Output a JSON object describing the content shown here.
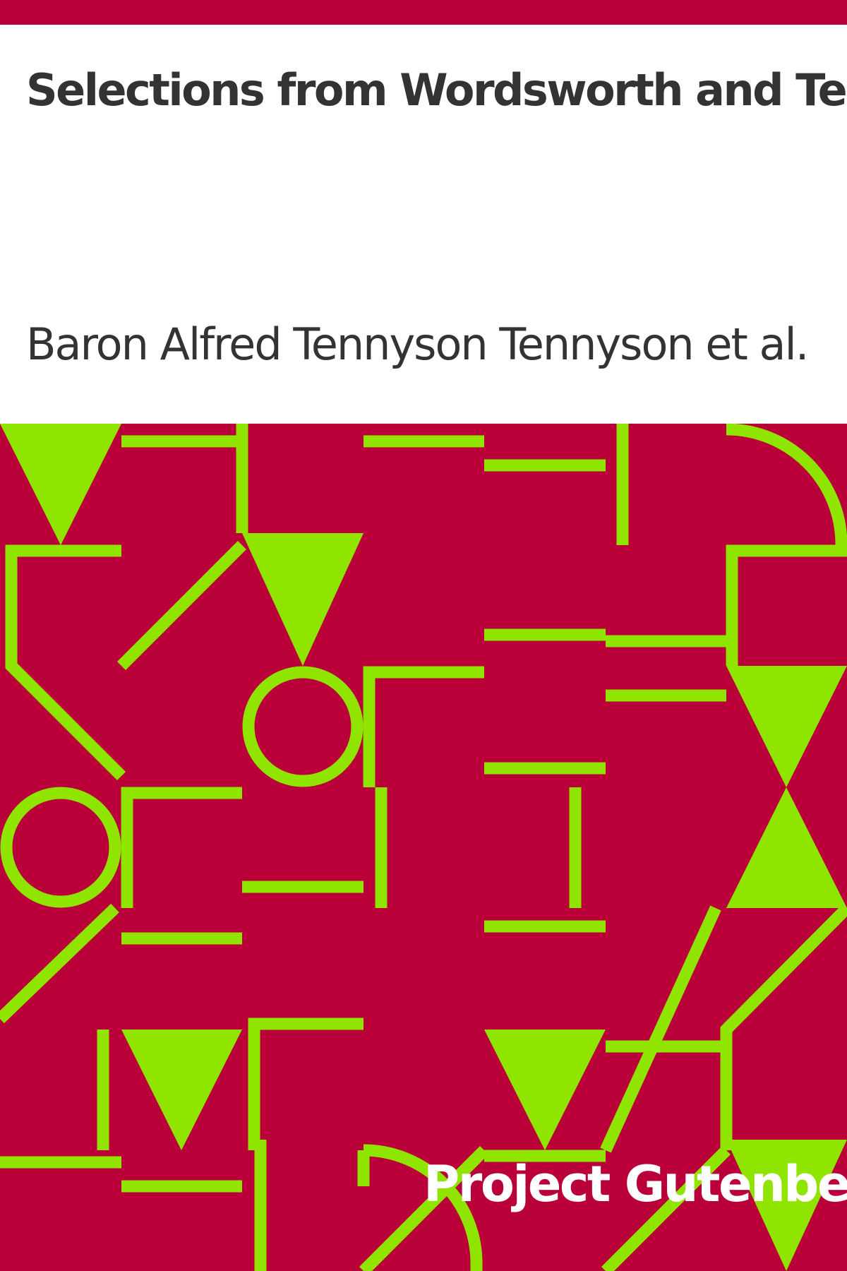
{
  "book": {
    "title": "Selections from Wordsworth and Tennyson",
    "author": "Baron Alfred Tennyson Tennyson et al.",
    "publisher": "Project Gutenberg"
  },
  "colors": {
    "background": "#ffffff",
    "accent": "#ba0039",
    "pattern": "#90e500",
    "text": "#333333",
    "publisher_text": "#ffffff"
  }
}
